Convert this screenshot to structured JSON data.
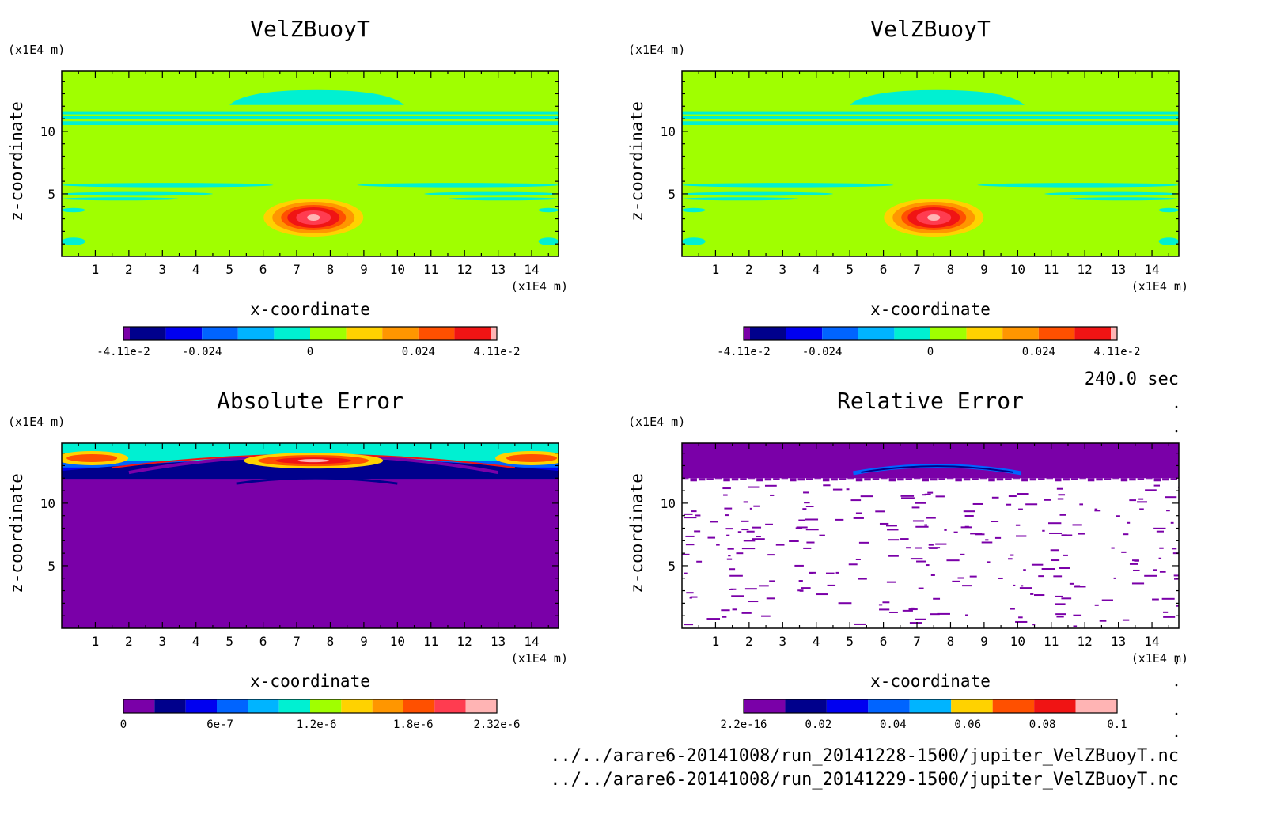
{
  "time_label": "240.0 sec",
  "files": [
    "../../arare6-20141008/run_20141228-1500/jupiter_VelZBuoyT.nc",
    "../../arare6-20141008/run_20141229-1500/jupiter_VelZBuoyT.nc"
  ],
  "palette": [
    "#7a00a8",
    "#00008c",
    "#0000f0",
    "#0064ff",
    "#00b4ff",
    "#00f0d2",
    "#a0ff00",
    "#ffd200",
    "#ff9600",
    "#ff5000",
    "#f01414",
    "#ff3c50",
    "#ffb4b4"
  ],
  "chart_data": [
    {
      "type": "heatmap",
      "title": "VelZBuoyT",
      "xlabel": "x-coordinate",
      "ylabel": "z-coordinate",
      "x_unit": "(x1E4 m)",
      "y_unit": "(x1E4 m)",
      "xlim": [
        0,
        14.8
      ],
      "ylim": [
        0,
        14.8
      ],
      "x_ticks": [
        1,
        2,
        3,
        4,
        5,
        6,
        7,
        8,
        9,
        10,
        11,
        12,
        13,
        14
      ],
      "y_ticks": [
        5,
        10
      ],
      "features": {
        "background": "#a0ff00",
        "bands": [
          {
            "z": [
              11.0,
              11.6
            ],
            "color": "#00f0d2"
          },
          {
            "z": [
              10.5,
              10.8
            ],
            "color": "#00f0d2"
          }
        ],
        "dome": {
          "x": [
            5.0,
            10.2
          ],
          "z": [
            12.1,
            13.3
          ],
          "color": "#00f0d2"
        },
        "thermal": {
          "x_center": 7.5,
          "z_center": 3.1,
          "max": 0.0411
        }
      },
      "colorbar": {
        "ticks": [
          "-4.11e-2",
          "-0.024",
          "0",
          "0.024",
          "4.11e-2"
        ],
        "range": [
          -0.0411,
          0.0411
        ]
      }
    },
    {
      "type": "heatmap",
      "title": "VelZBuoyT",
      "xlabel": "x-coordinate",
      "ylabel": "z-coordinate",
      "x_unit": "(x1E4 m)",
      "y_unit": "(x1E4 m)",
      "xlim": [
        0,
        14.8
      ],
      "ylim": [
        0,
        14.8
      ],
      "x_ticks": [
        1,
        2,
        3,
        4,
        5,
        6,
        7,
        8,
        9,
        10,
        11,
        12,
        13,
        14
      ],
      "y_ticks": [
        5,
        10
      ],
      "features": {
        "background": "#a0ff00",
        "bands": [
          {
            "z": [
              11.0,
              11.6
            ],
            "color": "#00f0d2"
          },
          {
            "z": [
              10.5,
              10.8
            ],
            "color": "#00f0d2"
          }
        ],
        "dome": {
          "x": [
            5.0,
            10.2
          ],
          "z": [
            12.1,
            13.3
          ],
          "color": "#00f0d2"
        },
        "thermal": {
          "x_center": 7.5,
          "z_center": 3.1,
          "max": 0.0411
        }
      },
      "colorbar": {
        "ticks": [
          "-4.11e-2",
          "-0.024",
          "0",
          "0.024",
          "4.11e-2"
        ],
        "range": [
          -0.0411,
          0.0411
        ]
      }
    },
    {
      "type": "heatmap",
      "title": "Absolute Error",
      "xlabel": "x-coordinate",
      "ylabel": "z-coordinate",
      "x_unit": "(x1E4 m)",
      "y_unit": "(x1E4 m)",
      "xlim": [
        0,
        14.8
      ],
      "ylim": [
        0,
        14.8
      ],
      "x_ticks": [
        1,
        2,
        3,
        4,
        5,
        6,
        7,
        8,
        9,
        10,
        11,
        12,
        13,
        14
      ],
      "y_ticks": [
        5,
        10
      ],
      "features": {
        "background": "#7a00a8",
        "error_layer_z": [
          12.2,
          14.8
        ],
        "max_error": 2.32e-06
      },
      "colorbar": {
        "ticks": [
          "0",
          "6e-7",
          "1.2e-6",
          "1.8e-6",
          "2.32e-6"
        ],
        "range": [
          0,
          2.32e-06
        ]
      }
    },
    {
      "type": "heatmap",
      "title": "Relative Error",
      "xlabel": "x-coordinate",
      "ylabel": "z-coordinate",
      "x_unit": "(x1E4 m)",
      "y_unit": "(x1E4 m)",
      "xlim": [
        0,
        14.8
      ],
      "ylim": [
        0,
        14.8
      ],
      "x_ticks": [
        1,
        2,
        3,
        4,
        5,
        6,
        7,
        8,
        9,
        10,
        11,
        12,
        13,
        14
      ],
      "y_ticks": [
        5,
        10
      ],
      "features": {
        "background": "#ffffff",
        "top_layer_z": [
          12.0,
          14.8
        ],
        "top_layer_color": "#7a00a8",
        "arc": {
          "x": [
            5.1,
            10.1
          ],
          "z": [
            12.4,
            13.2
          ]
        }
      },
      "colorbar": {
        "ticks": [
          "2.2e-16",
          "0.02",
          "0.04",
          "0.06",
          "0.08",
          "0.1"
        ],
        "range": [
          2.2e-16,
          0.1
        ]
      }
    }
  ]
}
